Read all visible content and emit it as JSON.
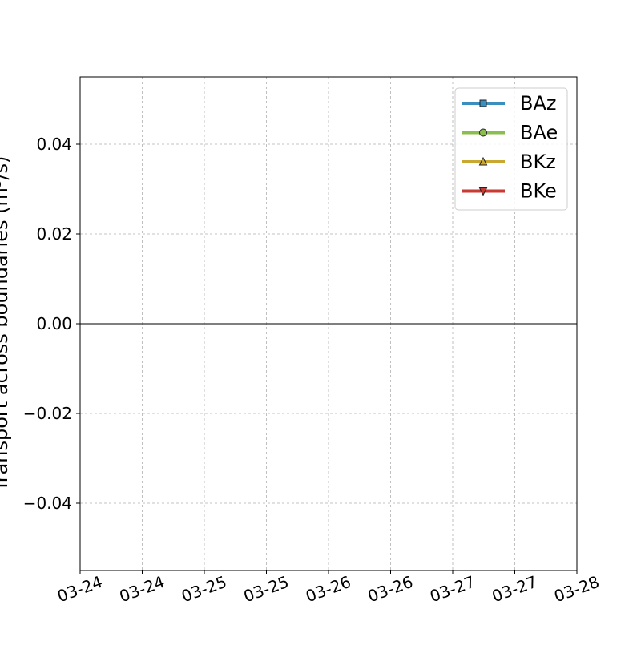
{
  "chart_data": {
    "type": "line",
    "title": "",
    "xlabel": "",
    "ylabel": "Transport across boundaries (m³/s)",
    "ylim": [
      -0.055,
      0.055
    ],
    "x_tick_labels": [
      "03-24",
      "03-24",
      "03-25",
      "03-25",
      "03-26",
      "03-26",
      "03-27",
      "03-27",
      "03-28"
    ],
    "y_ticks": [
      -0.04,
      -0.02,
      0.0,
      0.02,
      0.04
    ],
    "y_tick_labels": [
      "−0.04",
      "−0.02",
      "0.00",
      "0.02",
      "0.04"
    ],
    "grid": true,
    "legend_placement": "top-right",
    "reference_line_y": 0,
    "series": [
      {
        "name": "BAz",
        "color": "#3a8fbf",
        "marker": "square",
        "values": []
      },
      {
        "name": "BAe",
        "color": "#8bbd4f",
        "marker": "circle",
        "values": []
      },
      {
        "name": "BKz",
        "color": "#c9a832",
        "marker": "triangle-up",
        "values": []
      },
      {
        "name": "BKe",
        "color": "#c83a32",
        "marker": "triangle-down",
        "values": []
      }
    ]
  }
}
